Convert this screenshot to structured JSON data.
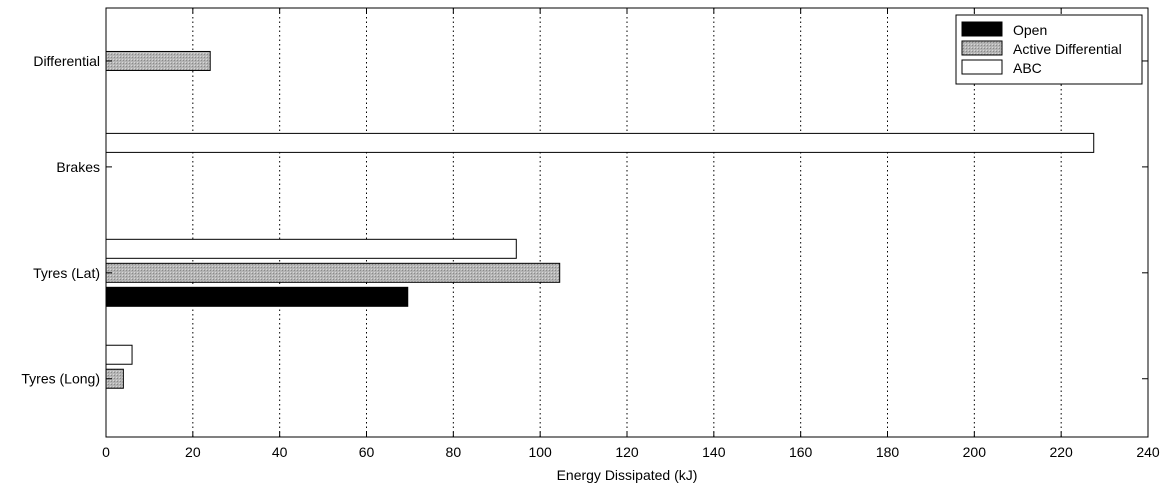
{
  "chart_data": {
    "type": "bar",
    "orientation": "horizontal",
    "categories": [
      "Tyres (Long)",
      "Tyres (Lat)",
      "Brakes",
      "Differential"
    ],
    "series": [
      {
        "name": "Open",
        "values": [
          0,
          69.5,
          0,
          0
        ],
        "color": "#000000"
      },
      {
        "name": "Active Differential",
        "values": [
          4,
          104.5,
          0,
          24
        ],
        "color": "#b0b0b0"
      },
      {
        "name": "ABC",
        "values": [
          6,
          94.5,
          227.5,
          0
        ],
        "color": "#ffffff"
      }
    ],
    "xlabel": "Energy Dissipated (kJ)",
    "ylabel": "",
    "xlim": [
      0,
      240
    ],
    "xticks": [
      0,
      20,
      40,
      60,
      80,
      100,
      120,
      140,
      160,
      180,
      200,
      220,
      240
    ],
    "grid": "x-dotted",
    "legend_position": "top-right"
  }
}
